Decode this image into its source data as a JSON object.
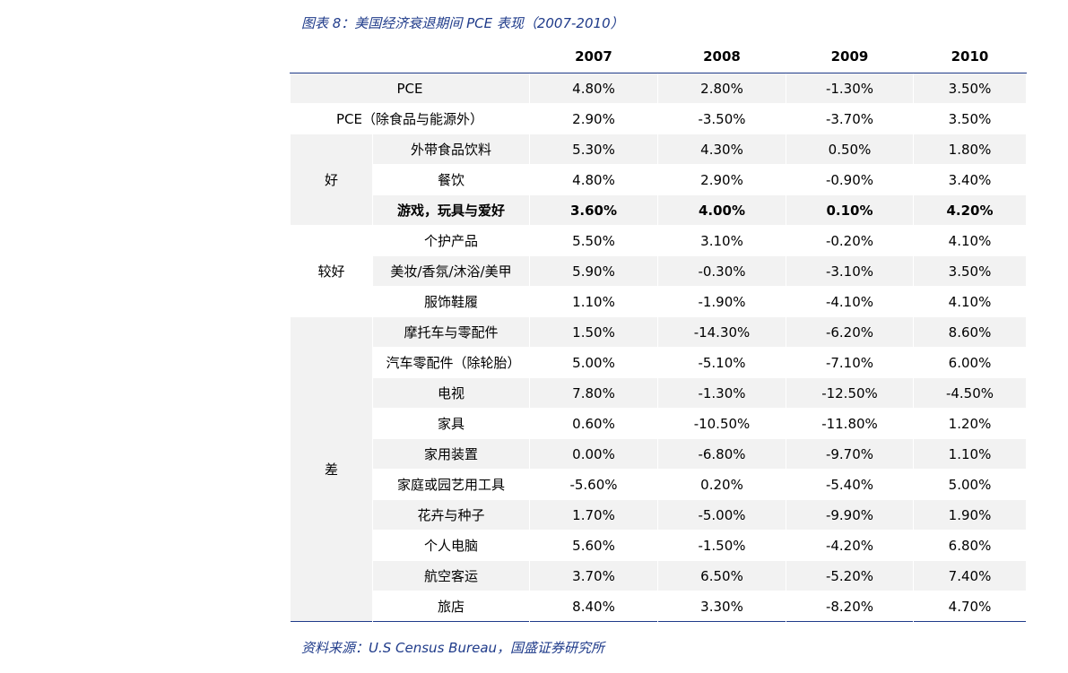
{
  "title": "图表 8：美国经济衰退期间 PCE 表现（2007-2010）",
  "table": {
    "columns": [
      "2007",
      "2008",
      "2009",
      "2010"
    ],
    "summary_rows": [
      {
        "label": "PCE",
        "values": [
          "4.80%",
          "2.80%",
          "-1.30%",
          "3.50%"
        ]
      },
      {
        "label": "PCE（除食品与能源外）",
        "values": [
          "2.90%",
          "-3.50%",
          "-3.70%",
          "3.50%"
        ]
      }
    ],
    "groups": [
      {
        "label": "好",
        "rows": [
          {
            "label": "外带食品饮料",
            "values": [
              "5.30%",
              "4.30%",
              "0.50%",
              "1.80%"
            ]
          },
          {
            "label": "餐饮",
            "values": [
              "4.80%",
              "2.90%",
              "-0.90%",
              "3.40%"
            ]
          },
          {
            "label": "游戏，玩具与爱好",
            "values": [
              "3.60%",
              "4.00%",
              "0.10%",
              "4.20%"
            ],
            "emphasis": true
          }
        ]
      },
      {
        "label": "较好",
        "rows": [
          {
            "label": "个护产品",
            "values": [
              "5.50%",
              "3.10%",
              "-0.20%",
              "4.10%"
            ]
          },
          {
            "label": "美妆/香氛/沐浴/美甲",
            "values": [
              "5.90%",
              "-0.30%",
              "-3.10%",
              "3.50%"
            ]
          },
          {
            "label": "服饰鞋履",
            "values": [
              "1.10%",
              "-1.90%",
              "-4.10%",
              "4.10%"
            ]
          }
        ]
      },
      {
        "label": "差",
        "rows": [
          {
            "label": "摩托车与零配件",
            "values": [
              "1.50%",
              "-14.30%",
              "-6.20%",
              "8.60%"
            ]
          },
          {
            "label": "汽车零配件（除轮胎）",
            "values": [
              "5.00%",
              "-5.10%",
              "-7.10%",
              "6.00%"
            ]
          },
          {
            "label": "电视",
            "values": [
              "7.80%",
              "-1.30%",
              "-12.50%",
              "-4.50%"
            ]
          },
          {
            "label": "家具",
            "values": [
              "0.60%",
              "-10.50%",
              "-11.80%",
              "1.20%"
            ]
          },
          {
            "label": "家用装置",
            "values": [
              "0.00%",
              "-6.80%",
              "-9.70%",
              "1.10%"
            ]
          },
          {
            "label": "家庭或园艺用工具",
            "values": [
              "-5.60%",
              "0.20%",
              "-5.40%",
              "5.00%"
            ]
          },
          {
            "label": "花卉与种子",
            "values": [
              "1.70%",
              "-5.00%",
              "-9.90%",
              "1.90%"
            ]
          },
          {
            "label": "个人电脑",
            "values": [
              "5.60%",
              "-1.50%",
              "-4.20%",
              "6.80%"
            ]
          },
          {
            "label": "航空客运",
            "values": [
              "3.70%",
              "6.50%",
              "-5.20%",
              "7.40%"
            ]
          },
          {
            "label": "旅店",
            "values": [
              "8.40%",
              "3.30%",
              "-8.20%",
              "4.70%"
            ]
          }
        ]
      }
    ]
  },
  "source": "资料来源：U.S Census Bureau，国盛证券研究所"
}
